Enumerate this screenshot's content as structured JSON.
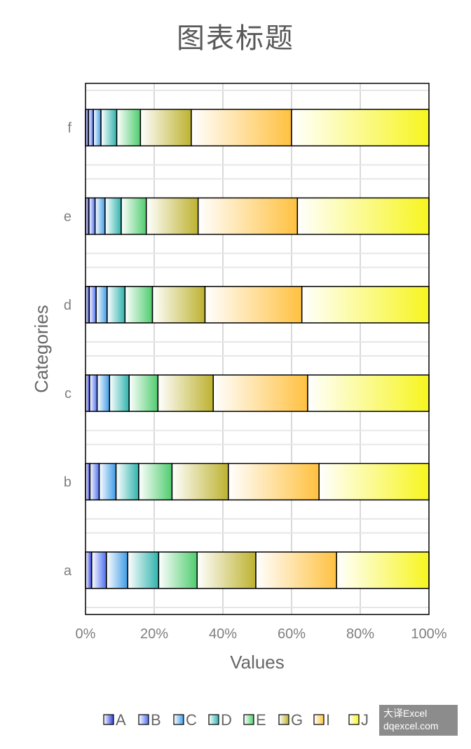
{
  "chart_data": {
    "type": "bar",
    "orientation": "horizontal",
    "stacked": "percent",
    "title": "图表标题",
    "xlabel": "Values",
    "ylabel": "Categories",
    "xlim": [
      0,
      100
    ],
    "x_ticks": [
      "0%",
      "20%",
      "40%",
      "60%",
      "80%",
      "100%"
    ],
    "grid": true,
    "legend_position": "bottom",
    "categories": [
      "a",
      "b",
      "c",
      "d",
      "e",
      "f"
    ],
    "series": [
      {
        "name": "A",
        "values": [
          1.8,
          1.3,
          1.2,
          1.1,
          1.0,
          0.9
        ],
        "color_from": "#ffffff",
        "color_to": "#2f3fd8"
      },
      {
        "name": "B",
        "values": [
          4.3,
          2.7,
          2.2,
          2.0,
          1.8,
          1.4
        ],
        "color_from": "#ffffff",
        "color_to": "#4b6ef0"
      },
      {
        "name": "C",
        "values": [
          6.2,
          4.9,
          3.6,
          3.2,
          2.9,
          2.2
        ],
        "color_from": "#ffffff",
        "color_to": "#3d9be6"
      },
      {
        "name": "D",
        "values": [
          9.0,
          6.6,
          5.7,
          5.2,
          4.7,
          4.6
        ],
        "color_from": "#ffffff",
        "color_to": "#2fb3ad"
      },
      {
        "name": "E",
        "values": [
          11.2,
          9.7,
          8.4,
          8.0,
          7.3,
          6.9
        ],
        "color_from": "#ffffff",
        "color_to": "#4fcc6e"
      },
      {
        "name": "G",
        "values": [
          17.1,
          16.4,
          16.1,
          15.3,
          15.1,
          14.8
        ],
        "color_from": "#ffffff",
        "color_to": "#bdb230"
      },
      {
        "name": "I",
        "values": [
          23.5,
          26.4,
          27.5,
          28.2,
          28.9,
          29.2
        ],
        "color_from": "#ffffff",
        "color_to": "#ffc140"
      },
      {
        "name": "J",
        "values": [
          26.9,
          32.0,
          35.3,
          37.0,
          38.3,
          40.0
        ],
        "color_from": "#ffffff",
        "color_to": "#f7f51e"
      }
    ]
  },
  "watermark": {
    "line1": "大译Excel",
    "line2": "dqexcel.com"
  }
}
